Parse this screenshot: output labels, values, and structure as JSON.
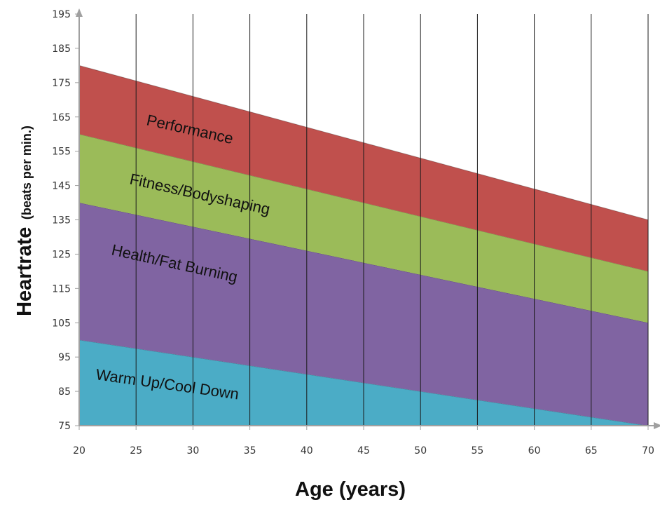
{
  "chart_data": {
    "type": "area",
    "title": "",
    "xlabel": "Age (years)",
    "ylabel_main": "Heartrate",
    "ylabel_sub": "(beats per min.)",
    "xlim": [
      20,
      70
    ],
    "ylim": [
      75,
      195
    ],
    "xticks": [
      20,
      25,
      30,
      35,
      40,
      45,
      50,
      55,
      60,
      65,
      70
    ],
    "yticks": [
      75,
      85,
      95,
      105,
      115,
      125,
      135,
      145,
      155,
      165,
      175,
      185,
      195
    ],
    "grid": "vertical",
    "x": [
      20,
      70
    ],
    "bands": [
      {
        "name": "Warm Up/Cool Down",
        "color": "#4bacc6",
        "lower": [
          75,
          75
        ],
        "upper": [
          100,
          75
        ]
      },
      {
        "name": "Health/Fat Burning",
        "color": "#8064a2",
        "lower": [
          100,
          75
        ],
        "upper": [
          140,
          105
        ]
      },
      {
        "name": "Fitness/Bodyshaping",
        "color": "#9bbb59",
        "lower": [
          140,
          105
        ],
        "upper": [
          160,
          120
        ]
      },
      {
        "name": "Performance",
        "color": "#c0504d",
        "lower": [
          160,
          120
        ],
        "upper": [
          180,
          135
        ]
      }
    ]
  }
}
